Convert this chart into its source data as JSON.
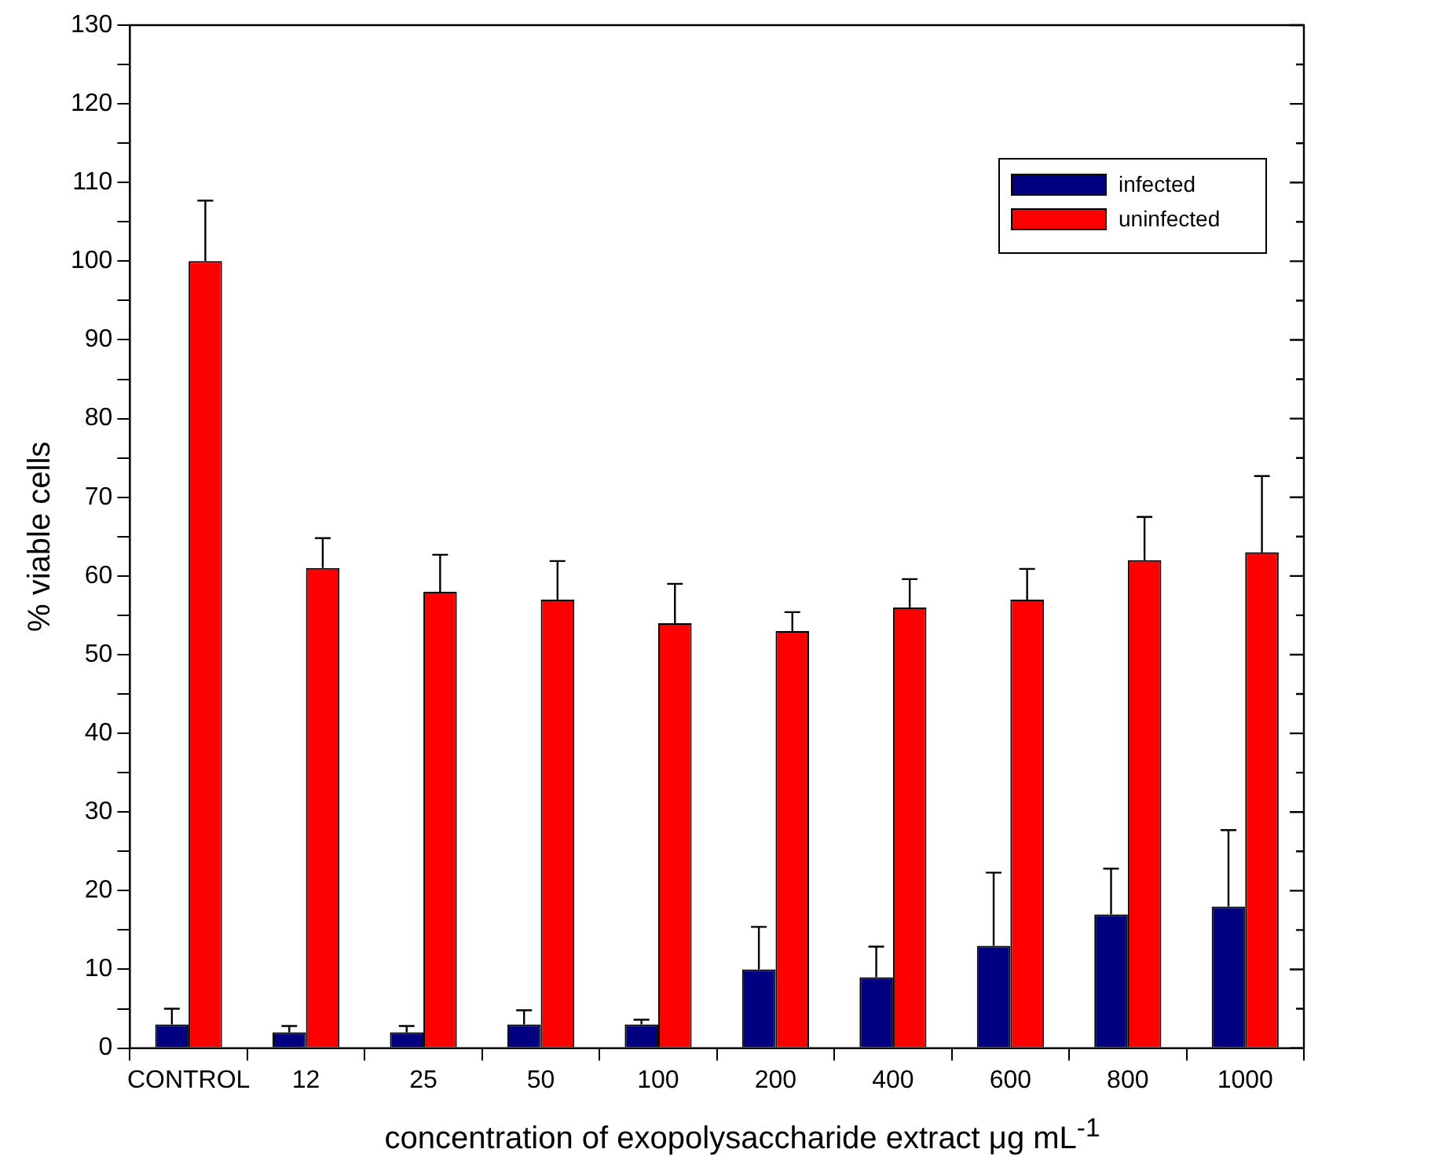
{
  "chart_data": {
    "type": "bar",
    "xlabel": "concentration of exopolysaccharide extract μg mL$^{-1}$",
    "ylabel": "% viable cells",
    "categories": [
      "CONTROL",
      "12",
      "25",
      "50",
      "100",
      "200",
      "400",
      "600",
      "800",
      "1000"
    ],
    "series": [
      {
        "name": "infected",
        "color": "#000080",
        "values": [
          3,
          2,
          2,
          3,
          3,
          10,
          9,
          13,
          17,
          18
        ],
        "errors": [
          [
            3,
            5
          ],
          [
            2,
            2.8
          ],
          [
            2,
            2.8
          ],
          [
            3,
            4.8
          ],
          [
            3,
            3.6
          ],
          [
            10,
            15.4
          ],
          [
            9,
            12.9
          ],
          [
            13,
            22.3
          ],
          [
            17,
            22.8
          ],
          [
            18,
            27.7
          ]
        ]
      },
      {
        "name": "uninfected",
        "color": "#ff0000",
        "values": [
          100,
          61,
          58,
          57,
          54,
          53,
          56,
          57,
          62,
          63
        ],
        "errors": [
          [
            100,
            107.7
          ],
          [
            61,
            64.8
          ],
          [
            58,
            62.7
          ],
          [
            57,
            61.9
          ],
          [
            54,
            59
          ],
          [
            53,
            55.4
          ],
          [
            56,
            59.6
          ],
          [
            57,
            60.9
          ],
          [
            62,
            67.5
          ],
          [
            63,
            72.7
          ]
        ]
      }
    ],
    "ylim": [
      0,
      130
    ],
    "yticks": [
      0,
      {
        "value": 5,
        "label": null
      },
      10,
      {
        "value": 15,
        "label": null
      },
      20,
      {
        "value": 25,
        "label": null
      },
      30,
      {
        "value": 35,
        "label": null
      },
      40,
      {
        "value": 45,
        "label": null
      },
      50,
      {
        "value": 55,
        "label": null
      },
      60,
      {
        "value": 65,
        "label": null
      },
      70,
      {
        "value": 75,
        "label": null
      },
      80,
      {
        "value": 85,
        "label": null
      },
      90,
      {
        "value": 95,
        "label": null
      },
      100,
      {
        "value": 105,
        "label": null
      },
      110,
      {
        "value": 115,
        "label": null
      },
      120,
      {
        "value": 125,
        "label": null
      },
      130
    ],
    "grid": false,
    "legend": "top right"
  }
}
